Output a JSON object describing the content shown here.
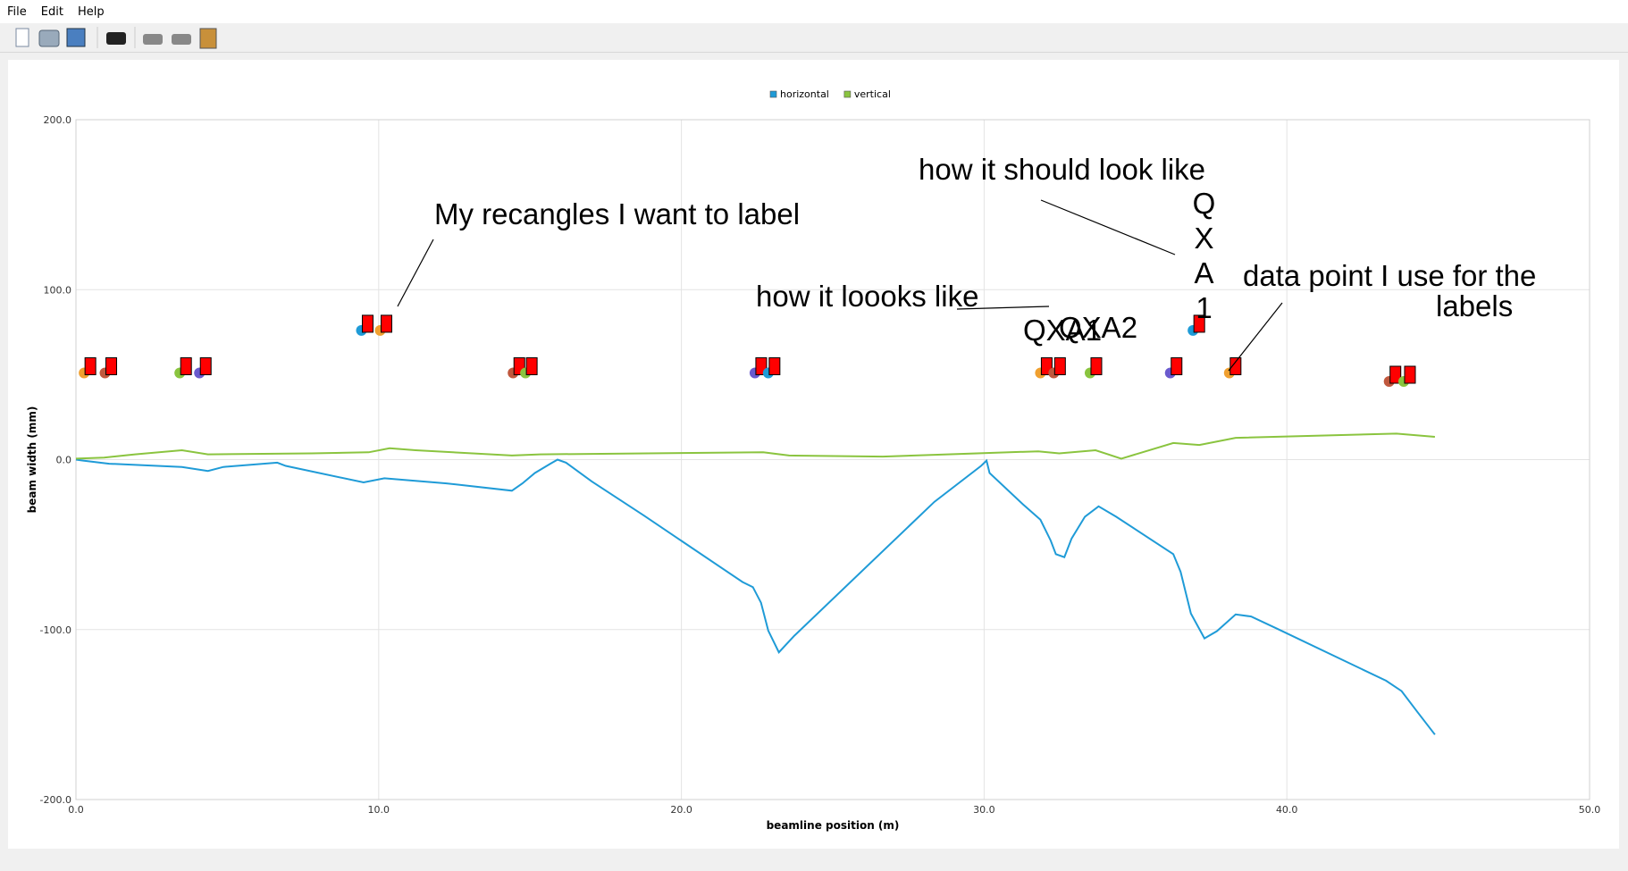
{
  "menu": [
    "File",
    "Edit",
    "Help"
  ],
  "annotations": {
    "rectangles_note": "My recangles I want to label",
    "should_look": "how it should look like",
    "looks_like": "how it loooks like",
    "data_point_note": [
      "data point I use for the",
      "labels"
    ],
    "vertical_label": "QXA1",
    "overlap_labels": [
      "QXA1",
      "QXA2"
    ]
  },
  "chart_data": {
    "type": "line",
    "x_label": "beamline position (m)",
    "y_label": "beam width (mm)",
    "xlim": [
      0,
      50
    ],
    "ylim": [
      -200,
      200
    ],
    "xticks": [
      {
        "value": 0,
        "label": "0.0"
      },
      {
        "value": 10,
        "label": "10.0"
      },
      {
        "value": 20,
        "label": "20.0"
      },
      {
        "value": 30,
        "label": "30.0"
      },
      {
        "value": 40,
        "label": "40.0"
      },
      {
        "value": 50,
        "label": "50.0"
      }
    ],
    "yticks": [
      {
        "value": -200,
        "label": "-200.0"
      },
      {
        "value": -100,
        "label": "-100.0"
      },
      {
        "value": 0,
        "label": "0.0"
      },
      {
        "value": 100,
        "label": "100.0"
      },
      {
        "value": 200,
        "label": "200.0"
      }
    ],
    "grid": true,
    "legend": "top",
    "series": [
      {
        "name": "horizontal",
        "color": "#1f9bd7",
        "x": [
          0,
          0.24,
          1.1,
          3.5,
          4.36,
          4.87,
          6.65,
          6.93,
          9.5,
          10.19,
          12.24,
          14.4,
          14.75,
          15.16,
          15.67,
          15.91,
          16.19,
          17.04,
          18.76,
          22.02,
          22.36,
          22.63,
          22.87,
          23.22,
          23.73,
          28.36,
          29.9,
          30.08,
          30.18,
          31.28,
          31.86,
          32.2,
          32.37,
          32.65,
          32.89,
          33.33,
          33.78,
          34.36,
          36.25,
          36.49,
          36.83,
          37.28,
          37.69,
          38.31,
          38.82,
          39.68,
          43.28,
          43.79,
          44.31,
          44.89
        ],
        "values": [
          0,
          -0.6,
          -2.4,
          -4.3,
          -6.7,
          -4.3,
          -1.8,
          -3.7,
          -13.4,
          -11,
          -14,
          -18.3,
          -14,
          -7.9,
          -2.4,
          0,
          -1.8,
          -12.8,
          -32.9,
          -72,
          -75,
          -84.2,
          -100.6,
          -113.4,
          -103.6,
          -24.8,
          -3.7,
          -0.6,
          -7.9,
          -26.3,
          -35.4,
          -47.6,
          -55.6,
          -57.4,
          -46.4,
          -33.6,
          -27.5,
          -33.6,
          -55.6,
          -66,
          -90.5,
          -105.2,
          -100.9,
          -91.1,
          -92.3,
          -99.5,
          -130.1,
          -136.2,
          -148.4,
          -161.8
        ]
      },
      {
        "name": "vertical",
        "color": "#8ac43f",
        "x": [
          0,
          0.93,
          1.95,
          3.5,
          4.36,
          7.78,
          9.67,
          10.36,
          11.22,
          14.4,
          15.33,
          22.7,
          23.56,
          26.65,
          31.79,
          32.48,
          33.68,
          34.53,
          36.25,
          37.11,
          38.31,
          43.62,
          44.89
        ],
        "values": [
          0.6,
          1.2,
          3.1,
          5.5,
          3.1,
          3.7,
          4.3,
          6.7,
          5.5,
          2.4,
          3.1,
          4.3,
          2.4,
          1.8,
          4.9,
          3.7,
          5.5,
          0.6,
          9.8,
          8.6,
          12.8,
          15.3,
          13.4
        ]
      }
    ],
    "points": {
      "x": [
        0.27,
        0.96,
        3.43,
        4.08,
        9.43,
        10.05,
        14.44,
        14.85,
        22.43,
        22.87,
        31.86,
        32.3,
        33.5,
        36.15,
        36.9,
        38.1,
        43.38,
        43.86
      ],
      "values": [
        51,
        51,
        51,
        51,
        76,
        76,
        51,
        51,
        51,
        51,
        51,
        51,
        51,
        51,
        76,
        51,
        46,
        46
      ],
      "colors": [
        "#f0a030",
        "#c0583e",
        "#8ac43f",
        "#6a5acd",
        "#1f9bd7",
        "#f0a030",
        "#c0583e",
        "#8ac43f",
        "#6a5acd",
        "#1f9bd7",
        "#f0a030",
        "#c0583e",
        "#8ac43f",
        "#6a5acd",
        "#1f9bd7",
        "#f0a030",
        "#c0583e",
        "#8ac43f"
      ]
    }
  }
}
